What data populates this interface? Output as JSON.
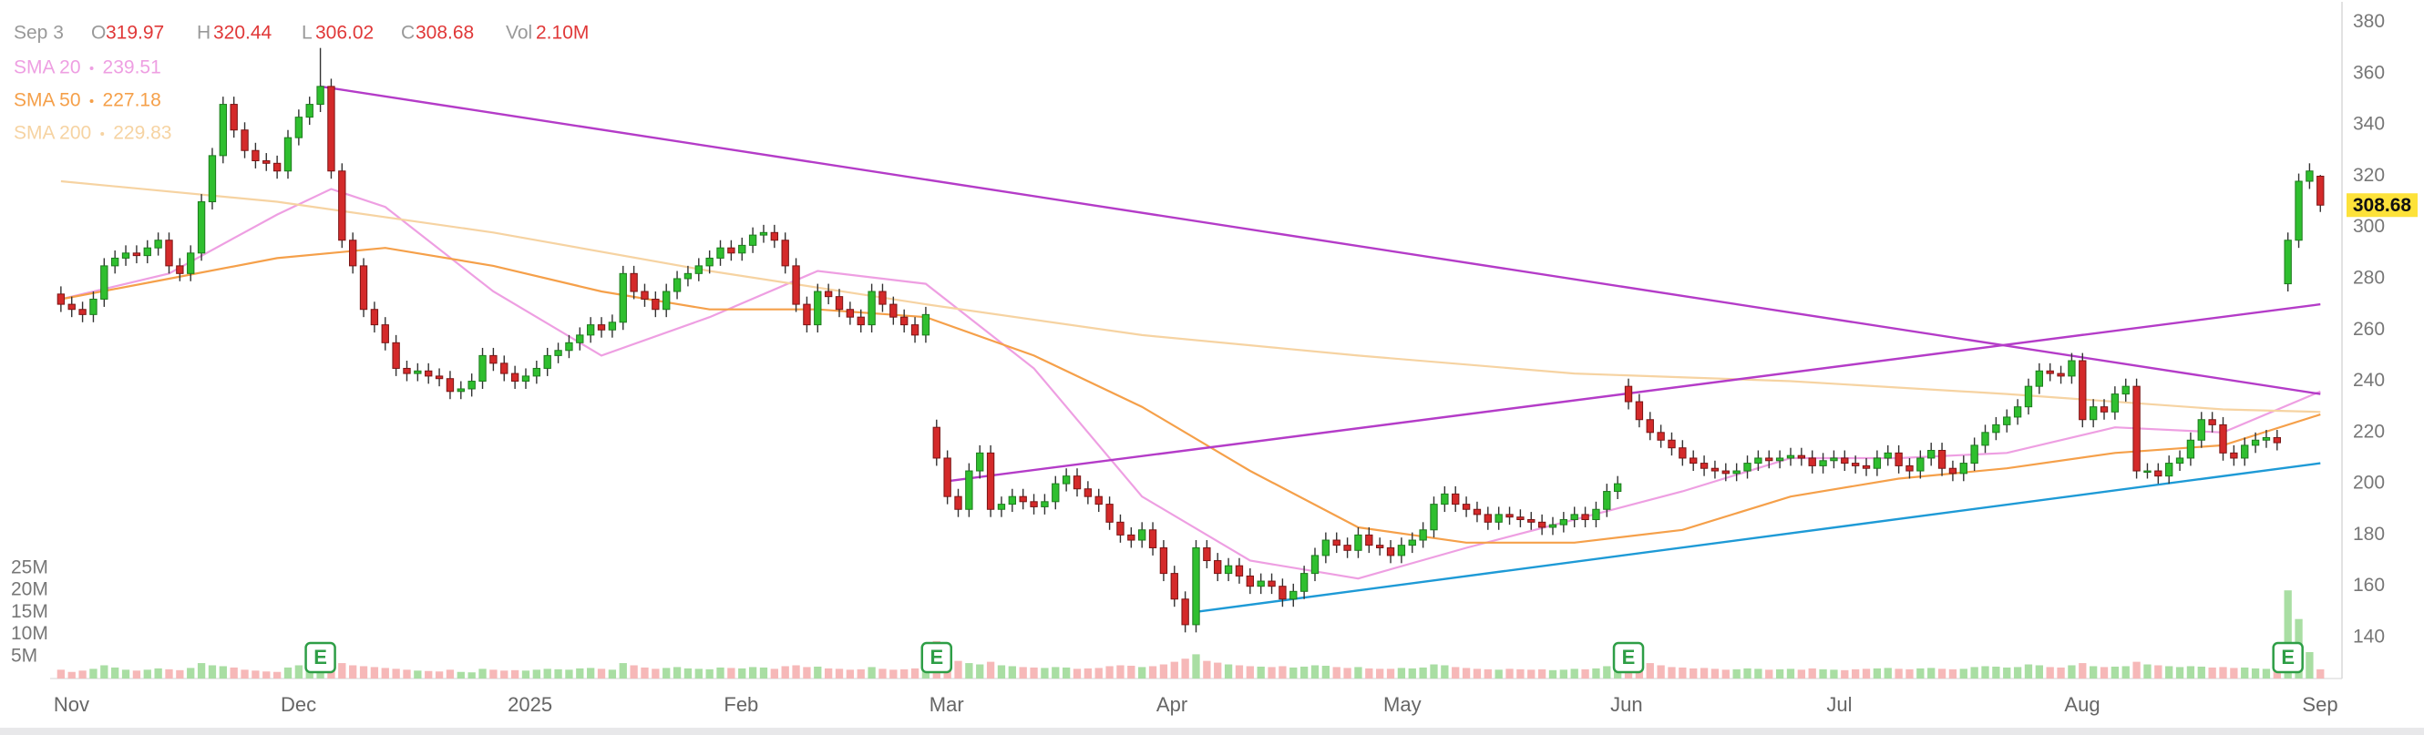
{
  "chart_data": {
    "type": "candlestick",
    "header": {
      "date": "Sep 3",
      "o": "O",
      "h": "H",
      "l": "L",
      "c": "C",
      "vol": "Vol",
      "volume_label": "2.10M"
    },
    "up_color": "#2fbf2f",
    "down_color": "#d42a2a",
    "up_volume_color": "#a9dea3",
    "down_volume_color": "#f6b8b8",
    "open": [
      274,
      270,
      268,
      266,
      272,
      285,
      288,
      290,
      289,
      292,
      295,
      285,
      282,
      290,
      310,
      328,
      348,
      338,
      330,
      326,
      325,
      322,
      335,
      343,
      348,
      355,
      322,
      295,
      285,
      268,
      262,
      255,
      245,
      243,
      244,
      242,
      241,
      236,
      237,
      240,
      250,
      247,
      243,
      240,
      242,
      245,
      250,
      252,
      255,
      258,
      262,
      260,
      263,
      282,
      275,
      272,
      268,
      275,
      280,
      282,
      285,
      288,
      292,
      290,
      293,
      297,
      298,
      295,
      285,
      270,
      262,
      275,
      273,
      268,
      265,
      262,
      275,
      270,
      265,
      262,
      258,
      222,
      210,
      195,
      190,
      205,
      212,
      190,
      192,
      195,
      193,
      191,
      193,
      200,
      203,
      198,
      195,
      192,
      185,
      180,
      178,
      182,
      175,
      165,
      155,
      145,
      175,
      170,
      165,
      168,
      164,
      160,
      162,
      160,
      155,
      158,
      165,
      172,
      178,
      176,
      174,
      180,
      176,
      175,
      172,
      176,
      178,
      182,
      192,
      196,
      192,
      190,
      188,
      185,
      188,
      187,
      186,
      185,
      183,
      184,
      186,
      188,
      186,
      190,
      197,
      238,
      232,
      225,
      220,
      217,
      214,
      210,
      208,
      206,
      205,
      204,
      205,
      208,
      210,
      209,
      210,
      211,
      210,
      207,
      209,
      210,
      208,
      207,
      206,
      210,
      212,
      207,
      205,
      210,
      213,
      206,
      204,
      208,
      215,
      220,
      223,
      226,
      230,
      238,
      244,
      243,
      242,
      248,
      225,
      230,
      228,
      235,
      238,
      205,
      205,
      203,
      208,
      210,
      217,
      225,
      223,
      212,
      210,
      215,
      217,
      218,
      278,
      295,
      318,
      319.97
    ],
    "high": [
      277,
      273,
      271,
      275,
      288,
      291,
      293,
      293,
      295,
      298,
      298,
      288,
      293,
      313,
      331,
      351,
      351,
      341,
      333,
      329,
      328,
      338,
      346,
      351,
      370,
      358,
      325,
      298,
      288,
      271,
      265,
      258,
      248,
      247,
      247,
      245,
      244,
      240,
      243,
      253,
      253,
      250,
      246,
      245,
      248,
      253,
      255,
      258,
      261,
      265,
      265,
      266,
      285,
      285,
      278,
      275,
      278,
      283,
      285,
      288,
      291,
      295,
      295,
      296,
      300,
      301,
      301,
      298,
      288,
      273,
      278,
      278,
      276,
      271,
      268,
      278,
      278,
      273,
      268,
      265,
      269,
      225,
      213,
      198,
      208,
      215,
      215,
      195,
      198,
      198,
      196,
      196,
      203,
      206,
      206,
      201,
      198,
      195,
      188,
      183,
      185,
      185,
      178,
      168,
      158,
      178,
      178,
      173,
      171,
      171,
      167,
      165,
      165,
      163,
      161,
      168,
      175,
      181,
      181,
      179,
      183,
      183,
      179,
      178,
      179,
      181,
      185,
      195,
      199,
      199,
      195,
      193,
      191,
      191,
      191,
      190,
      189,
      188,
      187,
      189,
      191,
      191,
      193,
      200,
      203,
      241,
      235,
      228,
      223,
      220,
      217,
      213,
      211,
      209,
      208,
      208,
      211,
      213,
      213,
      213,
      214,
      214,
      213,
      212,
      213,
      213,
      211,
      210,
      213,
      215,
      215,
      210,
      213,
      216,
      216,
      209,
      211,
      218,
      223,
      226,
      229,
      233,
      241,
      247,
      247,
      246,
      251,
      251,
      233,
      233,
      238,
      241,
      241,
      208,
      208,
      211,
      213,
      220,
      228,
      228,
      226,
      215,
      218,
      220,
      221,
      221,
      298,
      321,
      325,
      320.44
    ],
    "low": [
      267,
      265,
      263,
      263,
      269,
      282,
      285,
      286,
      286,
      289,
      282,
      279,
      279,
      287,
      307,
      325,
      335,
      327,
      323,
      322,
      319,
      319,
      332,
      340,
      345,
      319,
      292,
      282,
      265,
      259,
      252,
      242,
      240,
      240,
      239,
      238,
      233,
      233,
      234,
      237,
      244,
      240,
      237,
      237,
      239,
      242,
      247,
      249,
      252,
      255,
      257,
      257,
      260,
      272,
      269,
      265,
      265,
      272,
      277,
      279,
      282,
      285,
      287,
      287,
      290,
      294,
      292,
      282,
      267,
      259,
      259,
      270,
      265,
      262,
      259,
      259,
      267,
      262,
      259,
      255,
      255,
      207,
      192,
      187,
      187,
      202,
      187,
      187,
      189,
      190,
      188,
      188,
      190,
      197,
      195,
      192,
      189,
      182,
      177,
      175,
      175,
      172,
      162,
      152,
      142,
      142,
      167,
      162,
      162,
      161,
      157,
      157,
      157,
      152,
      152,
      155,
      162,
      169,
      173,
      171,
      171,
      173,
      172,
      169,
      169,
      173,
      175,
      179,
      189,
      189,
      187,
      185,
      182,
      182,
      184,
      183,
      182,
      180,
      180,
      181,
      183,
      183,
      183,
      187,
      194,
      229,
      222,
      217,
      214,
      211,
      207,
      205,
      203,
      202,
      201,
      201,
      202,
      205,
      206,
      206,
      207,
      207,
      204,
      204,
      206,
      205,
      204,
      203,
      203,
      207,
      204,
      202,
      202,
      207,
      203,
      201,
      201,
      205,
      212,
      217,
      220,
      223,
      227,
      235,
      240,
      239,
      239,
      222,
      222,
      225,
      225,
      232,
      202,
      202,
      200,
      200,
      205,
      207,
      214,
      220,
      209,
      207,
      207,
      212,
      214,
      213,
      275,
      292,
      315,
      306.02
    ],
    "close": [
      270,
      268,
      266,
      272,
      285,
      288,
      290,
      289,
      292,
      295,
      285,
      282,
      290,
      310,
      328,
      348,
      338,
      330,
      326,
      325,
      322,
      335,
      343,
      348,
      355,
      322,
      295,
      285,
      268,
      262,
      255,
      245,
      243,
      244,
      242,
      241,
      236,
      237,
      240,
      250,
      247,
      243,
      240,
      242,
      245,
      250,
      252,
      255,
      258,
      262,
      260,
      263,
      282,
      275,
      272,
      268,
      275,
      280,
      282,
      285,
      288,
      292,
      290,
      293,
      297,
      298,
      295,
      285,
      270,
      262,
      275,
      273,
      268,
      265,
      262,
      275,
      270,
      265,
      262,
      258,
      266,
      210,
      195,
      190,
      205,
      212,
      190,
      192,
      195,
      193,
      191,
      193,
      200,
      203,
      198,
      195,
      192,
      185,
      180,
      178,
      182,
      175,
      165,
      155,
      145,
      175,
      170,
      165,
      168,
      164,
      160,
      162,
      160,
      155,
      158,
      165,
      172,
      178,
      176,
      174,
      180,
      176,
      175,
      172,
      176,
      178,
      182,
      192,
      196,
      192,
      190,
      188,
      185,
      188,
      187,
      186,
      185,
      183,
      184,
      186,
      188,
      186,
      190,
      197,
      200,
      232,
      225,
      220,
      217,
      214,
      210,
      208,
      206,
      205,
      204,
      205,
      208,
      210,
      209,
      210,
      211,
      210,
      207,
      209,
      210,
      208,
      207,
      206,
      210,
      212,
      207,
      205,
      210,
      213,
      206,
      204,
      208,
      215,
      220,
      223,
      226,
      230,
      238,
      244,
      243,
      242,
      248,
      225,
      230,
      228,
      235,
      238,
      205,
      205,
      203,
      208,
      210,
      217,
      225,
      223,
      212,
      210,
      215,
      217,
      218,
      216,
      295,
      318,
      322,
      308.68
    ],
    "volume": [
      2,
      1.5,
      1.8,
      2.2,
      3,
      2.5,
      2,
      1.8,
      2,
      2.3,
      2.1,
      1.9,
      2.4,
      3.5,
      3,
      2.8,
      2.5,
      2,
      1.8,
      1.6,
      1.5,
      2.5,
      3,
      3.2,
      4.5,
      4,
      3.5,
      3,
      2.8,
      2.6,
      2.4,
      2.2,
      2,
      1.8,
      1.7,
      1.6,
      2,
      1.5,
      1.4,
      2.2,
      2,
      1.8,
      1.9,
      1.8,
      2,
      2.2,
      2.1,
      2,
      2.3,
      2.4,
      2.2,
      2,
      3.5,
      3,
      2.5,
      2.2,
      2.4,
      2.6,
      2.3,
      2.2,
      2.1,
      2.5,
      2.4,
      2.3,
      2.6,
      2.5,
      2.2,
      2.8,
      3,
      2.6,
      2.7,
      2.3,
      2.2,
      2,
      2.1,
      2.6,
      2.2,
      2,
      2.1,
      2.3,
      2.4,
      8.5,
      5,
      4,
      3.5,
      3.2,
      3.8,
      3,
      2.8,
      2.6,
      2.5,
      2.4,
      2.6,
      2.5,
      2.2,
      2.3,
      2.4,
      2.8,
      3,
      2.9,
      2.6,
      2.8,
      3.2,
      3.8,
      4.5,
      5.5,
      4,
      3.6,
      3.2,
      3,
      2.8,
      2.7,
      2.6,
      2.8,
      2.5,
      2.7,
      3,
      2.9,
      2.6,
      2.4,
      2.6,
      2.3,
      2.2,
      2.2,
      2.4,
      2.3,
      2.5,
      3.2,
      3,
      2.6,
      2.4,
      2.2,
      2.1,
      2,
      2.2,
      2.1,
      2,
      2.1,
      1.9,
      2,
      2.2,
      2.1,
      2.3,
      2.8,
      3,
      8.2,
      4.5,
      3.5,
      3,
      2.6,
      2.5,
      2.3,
      2.4,
      2.2,
      2,
      2.1,
      2.3,
      2.2,
      2,
      2.1,
      2.2,
      2,
      2.3,
      2.1,
      2,
      1.9,
      2.1,
      2.2,
      2.3,
      2.4,
      2.2,
      2.1,
      2.3,
      2.4,
      2.2,
      2.1,
      2.2,
      2.6,
      2.8,
      2.7,
      2.5,
      2.6,
      3.2,
      3,
      2.6,
      2.5,
      3,
      3.5,
      2.8,
      2.6,
      2.7,
      2.8,
      3.8,
      3.2,
      3,
      2.8,
      2.6,
      2.8,
      2.7,
      2.5,
      2.6,
      2.4,
      2.5,
      2.3,
      2.2,
      2.4,
      20,
      13.5,
      6,
      2.1
    ],
    "series": [
      {
        "name": "SMA 20",
        "color": "#ee9fe2",
        "legend_value": 239.51,
        "x": [
          0,
          10,
          20,
          25,
          30,
          40,
          50,
          60,
          70,
          80,
          90,
          100,
          110,
          120,
          130,
          140,
          150,
          160,
          170,
          180,
          190,
          200,
          209
        ],
        "values": [
          272,
          282,
          305,
          315,
          308,
          275,
          250,
          265,
          283,
          278,
          245,
          195,
          170,
          163,
          175,
          186,
          197,
          210,
          210,
          212,
          222,
          220,
          236
        ]
      },
      {
        "name": "SMA 50",
        "color": "#f5a04a",
        "legend_value": 227.18,
        "x": [
          0,
          10,
          20,
          30,
          40,
          50,
          60,
          70,
          80,
          90,
          100,
          110,
          120,
          130,
          140,
          150,
          160,
          170,
          180,
          190,
          200,
          209
        ],
        "values": [
          272,
          280,
          288,
          292,
          285,
          275,
          268,
          268,
          265,
          250,
          230,
          205,
          183,
          177,
          177,
          182,
          195,
          202,
          206,
          212,
          215,
          227
        ]
      },
      {
        "name": "SMA 200",
        "color": "#f6d3a2",
        "legend_value": 229.83,
        "x": [
          0,
          20,
          40,
          60,
          80,
          100,
          120,
          140,
          160,
          180,
          200,
          209
        ],
        "values": [
          318,
          310,
          298,
          283,
          270,
          258,
          250,
          243,
          240,
          235,
          229,
          228
        ]
      }
    ],
    "trendlines": [
      {
        "color": "#b43cc8",
        "x": [
          24,
          209
        ],
        "values": [
          355,
          235
        ]
      },
      {
        "color": "#b43cc8",
        "x": [
          82,
          209
        ],
        "values": [
          201,
          270
        ]
      },
      {
        "color": "#1e9ad6",
        "x": [
          105,
          209
        ],
        "values": [
          150,
          208
        ]
      }
    ],
    "events": [
      {
        "x": 24,
        "label": "E"
      },
      {
        "x": 81,
        "label": "E"
      },
      {
        "x": 145,
        "label": "E"
      },
      {
        "x": 206,
        "label": "E"
      }
    ],
    "xlim": [
      -1,
      211
    ],
    "xticks": [
      {
        "value": 0,
        "label": "Nov"
      },
      {
        "value": 21,
        "label": "Dec"
      },
      {
        "value": 42,
        "label": "2025"
      },
      {
        "value": 62,
        "label": "Feb"
      },
      {
        "value": 81,
        "label": "Mar"
      },
      {
        "value": 102,
        "label": "Apr"
      },
      {
        "value": 123,
        "label": "May"
      },
      {
        "value": 144,
        "label": "Jun"
      },
      {
        "value": 164,
        "label": "Jul"
      },
      {
        "value": 186,
        "label": "Aug"
      },
      {
        "value": 208,
        "label": "Sep"
      }
    ],
    "ylim": [
      124,
      388
    ],
    "yticks": [
      140,
      160,
      180,
      200,
      220,
      240,
      260,
      280,
      300,
      320,
      340,
      360,
      380
    ],
    "volume_ylim": [
      0,
      25
    ],
    "volume_ticks": [
      {
        "value": 5,
        "label": "5M"
      },
      {
        "value": 10,
        "label": "10M"
      },
      {
        "value": 15,
        "label": "15M"
      },
      {
        "value": 20,
        "label": "20M"
      },
      {
        "value": 25,
        "label": "25M"
      }
    ],
    "grid": true
  }
}
